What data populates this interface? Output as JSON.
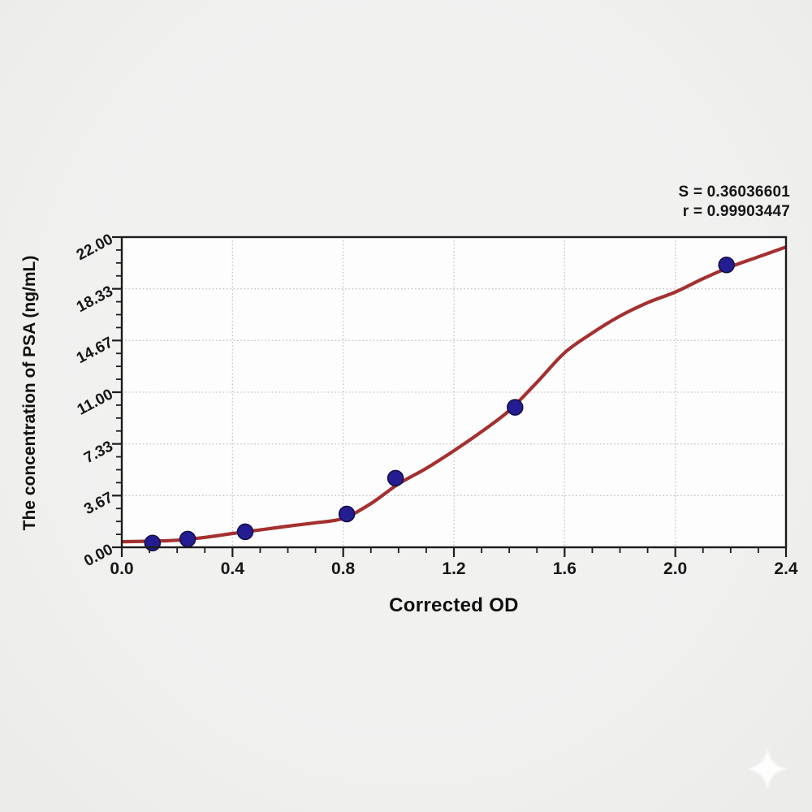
{
  "page": {
    "background": "#efefee"
  },
  "stats": {
    "s_line": "S = 0.36036601",
    "r_line": "r = 0.99903447",
    "S": 0.36036601,
    "r": 0.99903447
  },
  "watermark": {
    "shape": "four-point-star-sparkle",
    "color": "#ffffff"
  },
  "chart_data": {
    "type": "scatter",
    "title": "",
    "xlabel": "Corrected OD",
    "ylabel": "The concentration of PSA (ng/mL)",
    "xlim": [
      0.0,
      2.4
    ],
    "ylim": [
      0.0,
      22.0
    ],
    "grid": "dotted gridlines at major ticks, plot framed in black box, white plot background",
    "legend": "none",
    "x_ticks": [
      {
        "label": "0.0",
        "value": 0.0
      },
      {
        "label": "0.4",
        "value": 0.4
      },
      {
        "label": "0.8",
        "value": 0.8
      },
      {
        "label": "1.2",
        "value": 1.2
      },
      {
        "label": "1.6",
        "value": 1.6
      },
      {
        "label": "2.0",
        "value": 2.0
      },
      {
        "label": "2.4",
        "value": 2.4
      }
    ],
    "y_ticks": [
      {
        "label": "0.00",
        "value": 0.0
      },
      {
        "label": "3.67",
        "value": 3.6667
      },
      {
        "label": "7.33",
        "value": 7.3333
      },
      {
        "label": "11.00",
        "value": 11.0
      },
      {
        "label": "14.67",
        "value": 14.6667
      },
      {
        "label": "18.33",
        "value": 18.3333
      },
      {
        "label": "22.00",
        "value": 22.0
      }
    ],
    "x_minor_tick_step": 0.1,
    "y_minor_tick_step": 0.9167,
    "series": [
      {
        "name": "standard-points",
        "type": "scatter",
        "marker": "circle",
        "x": [
          0.111,
          0.238,
          0.446,
          0.813,
          0.989,
          1.421,
          2.185
        ],
        "y": [
          0.3,
          0.58,
          1.1,
          2.36,
          4.9,
          9.93,
          20.03
        ]
      },
      {
        "name": "4pl-fit-curve",
        "type": "line",
        "samples": [
          [
            0.0,
            0.4
          ],
          [
            0.1,
            0.43
          ],
          [
            0.2,
            0.5
          ],
          [
            0.3,
            0.7
          ],
          [
            0.4,
            0.98
          ],
          [
            0.5,
            1.23
          ],
          [
            0.6,
            1.5
          ],
          [
            0.7,
            1.74
          ],
          [
            0.8,
            2.05
          ],
          [
            0.9,
            3.1
          ],
          [
            1.0,
            4.5
          ],
          [
            1.1,
            5.6
          ],
          [
            1.2,
            6.85
          ],
          [
            1.3,
            8.2
          ],
          [
            1.4,
            9.7
          ],
          [
            1.5,
            11.7
          ],
          [
            1.6,
            13.8
          ],
          [
            1.7,
            15.2
          ],
          [
            1.8,
            16.4
          ],
          [
            1.9,
            17.35
          ],
          [
            2.0,
            18.1
          ],
          [
            2.1,
            19.05
          ],
          [
            2.2,
            19.9
          ],
          [
            2.3,
            20.6
          ],
          [
            2.4,
            21.3
          ]
        ]
      }
    ],
    "colors": {
      "curve": "#a43030",
      "point_fill": "#241d92",
      "point_stroke": "#100c45",
      "grid": "#c2c2c2",
      "frame": "#1c1c1c",
      "tick": "#1c1c1c",
      "plot_background": "#fdfdfd",
      "text": "#111111"
    }
  }
}
